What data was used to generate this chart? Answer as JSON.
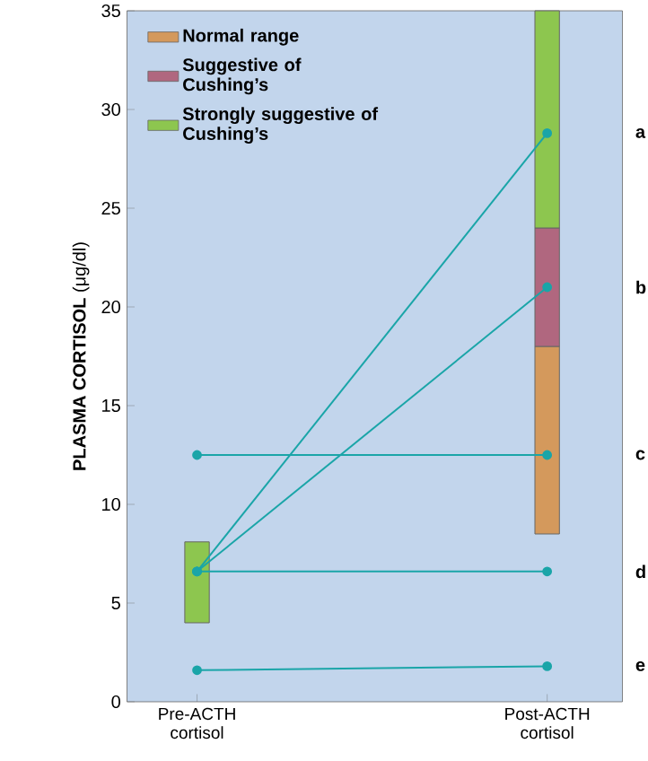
{
  "chart_data": {
    "type": "bar",
    "ylabel": "**PLASMA CORTISOL** (μg/dl)",
    "categories": [
      "Pre-ACTH cortisol",
      "Post-ACTH cortisol"
    ],
    "ylim": [
      0,
      35
    ],
    "yticks": [
      0,
      5,
      10,
      15,
      20,
      25,
      30,
      35
    ],
    "legend": "top left",
    "grid": false,
    "series": [
      {
        "name": "Normal range",
        "color": "#d4995c",
        "values": [
          null,
          9.5
        ],
        "base": [
          null,
          8.5
        ]
      },
      {
        "name": "Suggestive of Cushing’s",
        "color": "#b0677f",
        "values": [
          null,
          6
        ],
        "base": [
          null,
          18
        ]
      },
      {
        "name": "Strongly suggestive of Cushing’s",
        "color": "#8dc64f",
        "values": [
          4.1,
          11
        ],
        "base": [
          4,
          24
        ]
      },
      {
        "type": "line",
        "color": "#1aa5a8",
        "values": [
          6.6,
          28.8
        ],
        "marker": "circle",
        "line_style": "solid"
      },
      {
        "type": "line",
        "color": "#1aa5a8",
        "values": [
          6.6,
          21
        ],
        "marker": "circle",
        "line_style": "solid"
      },
      {
        "type": "line",
        "color": "#1aa5a8",
        "values": [
          12.5,
          12.5
        ],
        "marker": "circle",
        "line_style": "solid"
      },
      {
        "type": "line",
        "color": "#1aa5a8",
        "values": [
          6.6,
          6.6
        ],
        "marker": "circle",
        "line_style": "solid"
      },
      {
        "type": "line",
        "color": "#1aa5a8",
        "values": [
          1.6,
          1.8
        ],
        "marker": "circle",
        "line_style": "solid"
      }
    ],
    "annotations": [
      "a",
      "b",
      "c",
      "d",
      "e"
    ]
  }
}
